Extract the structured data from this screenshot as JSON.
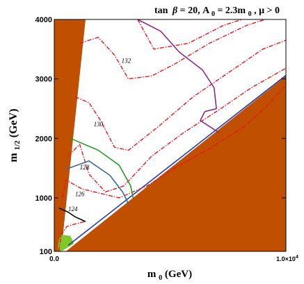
{
  "chart_data": {
    "type": "contour",
    "title": "tan β = 20, A₀ = 2.3m₀,  μ > 0",
    "title_parts": {
      "tan": "tan",
      "beta": "β",
      "rest1": " = 20, A",
      "sub0": "0",
      "rest2": " = 2.3m",
      "sub1": "0",
      "rest3": ",  μ > 0"
    },
    "xlabel": {
      "main": "m",
      "sub": "0",
      "rest": " (GeV)"
    },
    "ylabel": {
      "main": "m",
      "sub": "1/2",
      "rest": " (GeV)"
    },
    "xlim": [
      0,
      10000
    ],
    "ylim": [
      100,
      4000
    ],
    "x_ticks": [
      {
        "value": 0,
        "label": "0.0"
      },
      {
        "value": 10000,
        "label": "1.0×10",
        "sup": "4"
      }
    ],
    "y_ticks": [
      {
        "value": 100,
        "label": "100"
      },
      {
        "value": 1000,
        "label": "1000"
      },
      {
        "value": 2000,
        "label": "2000"
      },
      {
        "value": 3000,
        "label": "3000"
      },
      {
        "value": 4000,
        "label": "4000"
      }
    ],
    "colors": {
      "excluded": "#c05000",
      "green_region": "#7ec82a",
      "higgs_contours": "#e8141e",
      "black": "#000000",
      "steelblue": "#3a6a9a",
      "green": "#2a9a2a",
      "purple": "#8a2a8a",
      "blue": "#2a3aa8"
    },
    "regions": [
      {
        "kind": "excluded-left",
        "color": "excluded",
        "points": [
          [
            0,
            100
          ],
          [
            0,
            4000
          ],
          [
            1350,
            4000
          ],
          [
            300,
            100
          ]
        ]
      },
      {
        "kind": "excluded-right",
        "color": "excluded",
        "points": [
          [
            500,
            100
          ],
          [
            10000,
            3050
          ],
          [
            10000,
            100
          ]
        ]
      },
      {
        "kind": "green-band",
        "color": "green_region",
        "points": [
          [
            150,
            150
          ],
          [
            200,
            300
          ],
          [
            330,
            380
          ],
          [
            700,
            360
          ],
          [
            850,
            230
          ],
          [
            350,
            110
          ],
          [
            200,
            110
          ]
        ]
      }
    ],
    "lines": [
      {
        "name": "blue",
        "color": "blue",
        "style": "solid",
        "points": [
          [
            600,
            200
          ],
          [
            10000,
            3060
          ]
        ]
      },
      {
        "name": "red-124",
        "color": "higgs_contours",
        "style": "dashdot",
        "points": [
          [
            200,
            110
          ],
          [
            300,
            380
          ],
          [
            550,
            520
          ],
          [
            900,
            560
          ],
          [
            1300,
            600
          ]
        ]
      },
      {
        "name": "red-126",
        "color": "higgs_contours",
        "style": "dashdot",
        "points": [
          [
            350,
            1000
          ],
          [
            500,
            1300
          ],
          [
            1200,
            1150
          ],
          [
            2800,
            1000
          ],
          [
            4000,
            1200
          ],
          [
            5200,
            1500
          ],
          [
            6800,
            1850
          ],
          [
            8200,
            2200
          ],
          [
            9200,
            2550
          ],
          [
            10000,
            2900
          ]
        ]
      },
      {
        "name": "red-128",
        "color": "higgs_contours",
        "style": "dashdot",
        "points": [
          [
            600,
            1700
          ],
          [
            1100,
            1900
          ],
          [
            1500,
            1400
          ],
          [
            2200,
            1100
          ],
          [
            3000,
            1200
          ],
          [
            4200,
            1700
          ],
          [
            5600,
            2100
          ],
          [
            7000,
            2450
          ],
          [
            8500,
            2850
          ],
          [
            10000,
            3180
          ]
        ]
      },
      {
        "name": "red-130",
        "color": "higgs_contours",
        "style": "dashdot",
        "points": [
          [
            900,
            2700
          ],
          [
            1500,
            2600
          ],
          [
            2000,
            2300
          ],
          [
            2600,
            1850
          ],
          [
            3200,
            1800
          ],
          [
            4500,
            2200
          ],
          [
            6000,
            2700
          ],
          [
            7500,
            3100
          ],
          [
            9000,
            3500
          ],
          [
            10000,
            3650
          ]
        ]
      },
      {
        "name": "red-132",
        "color": "higgs_contours",
        "style": "dashdot",
        "points": [
          [
            1100,
            3600
          ],
          [
            1900,
            3700
          ],
          [
            2600,
            3400
          ],
          [
            3200,
            3000
          ],
          [
            4200,
            3050
          ],
          [
            5200,
            3250
          ],
          [
            6700,
            3600
          ],
          [
            8300,
            3900
          ],
          [
            9100,
            4000
          ]
        ]
      },
      {
        "name": "red-top",
        "color": "higgs_contours",
        "style": "dashdot",
        "points": [
          [
            3600,
            4000
          ],
          [
            4300,
            3500
          ],
          [
            5800,
            3600
          ],
          [
            7300,
            3900
          ],
          [
            8100,
            4000
          ]
        ]
      },
      {
        "name": "black",
        "color": "black",
        "style": "solid",
        "points": [
          [
            200,
            830
          ],
          [
            600,
            760
          ],
          [
            900,
            680
          ],
          [
            1250,
            620
          ],
          [
            1350,
            600
          ]
        ]
      },
      {
        "name": "steelblue",
        "color": "steelblue",
        "style": "solid",
        "points": [
          [
            500,
            1480
          ],
          [
            1500,
            1620
          ],
          [
            2400,
            1380
          ],
          [
            2950,
            1100
          ],
          [
            3200,
            900
          ]
        ]
      },
      {
        "name": "green",
        "color": "green",
        "style": "solid",
        "points": [
          [
            700,
            2000
          ],
          [
            1900,
            1800
          ],
          [
            2800,
            1550
          ],
          [
            3300,
            1200
          ],
          [
            3400,
            1000
          ]
        ]
      },
      {
        "name": "purple",
        "color": "purple",
        "style": "solid",
        "points": [
          [
            3600,
            4000
          ],
          [
            4600,
            3800
          ],
          [
            5400,
            3450
          ],
          [
            6400,
            3150
          ],
          [
            6900,
            2850
          ],
          [
            7000,
            2500
          ],
          [
            6500,
            2450
          ],
          [
            6300,
            2300
          ],
          [
            7100,
            2100
          ]
        ]
      }
    ],
    "contour_labels": [
      {
        "text": "124",
        "x": 600,
        "y": 780
      },
      {
        "text": "126",
        "x": 900,
        "y": 1030
      },
      {
        "text": "128",
        "x": 1100,
        "y": 1480
      },
      {
        "text": "130",
        "x": 1700,
        "y": 2200
      },
      {
        "text": "132",
        "x": 2900,
        "y": 3270
      }
    ]
  }
}
